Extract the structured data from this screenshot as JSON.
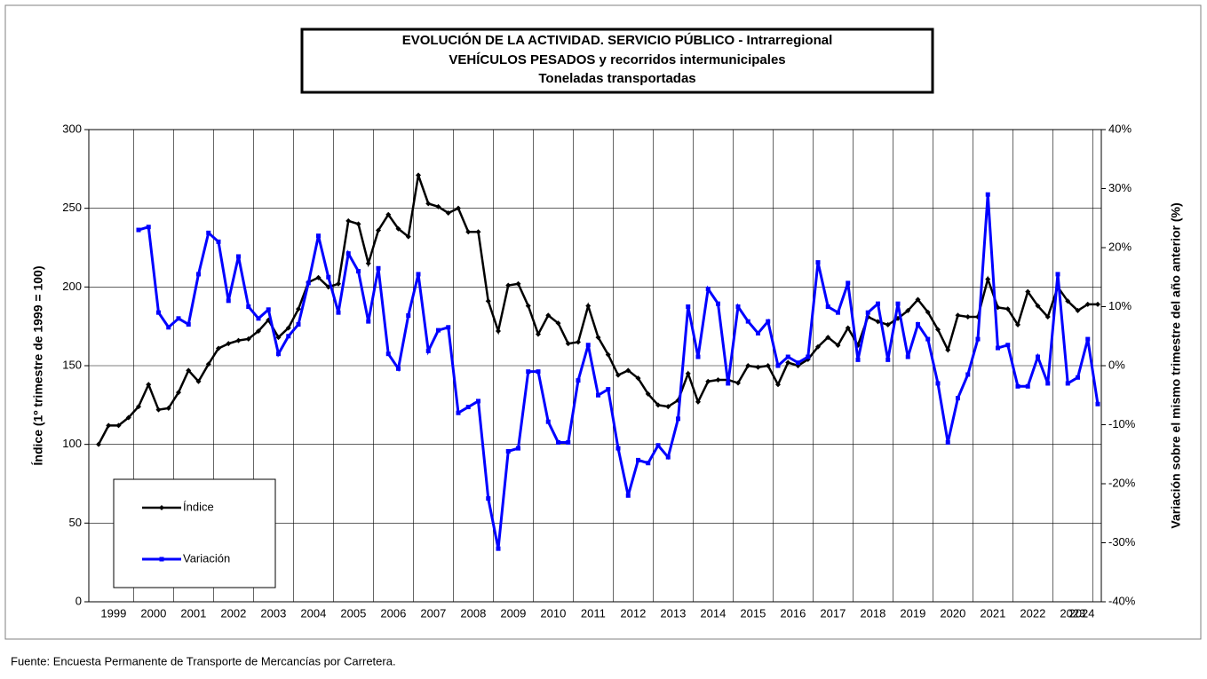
{
  "chart_data": {
    "type": "line",
    "title": [
      "EVOLUCIÓN  DE  LA  ACTIVIDAD.  SERVICIO  PÚBLICO - Intrarregional",
      "VEHÍCULOS  PESADOS  y  recorridos  intermunicipales",
      "Toneladas transportadas"
    ],
    "y_label": "Índice (1º trimestre de 1999 = 100)",
    "y2_label": "Variación sobre el mismo trimestre del año anterior (%)",
    "source": "Fuente: Encuesta Permanente de Transporte de Mercancías por Carretera.",
    "categories": [
      "1999",
      null,
      null,
      null,
      "2000",
      null,
      null,
      null,
      "2001",
      null,
      null,
      null,
      "2002",
      null,
      null,
      null,
      "2003",
      null,
      null,
      null,
      "2004",
      null,
      null,
      null,
      "2005",
      null,
      null,
      null,
      "2006",
      null,
      null,
      null,
      "2007",
      null,
      null,
      null,
      "2008",
      null,
      null,
      null,
      "2009",
      null,
      null,
      null,
      "2010",
      null,
      null,
      null,
      "2011",
      null,
      null,
      null,
      "2012",
      null,
      null,
      null,
      "2013",
      null,
      null,
      null,
      "2014",
      null,
      null,
      null,
      "2015",
      null,
      null,
      null,
      "2016",
      null,
      null,
      null,
      "2017",
      null,
      null,
      null,
      "2018",
      null,
      null,
      null,
      "2019",
      null,
      null,
      null,
      "2020",
      null,
      null,
      null,
      "2021",
      null,
      null,
      null,
      "2022",
      null,
      null,
      null,
      "2023",
      null,
      null,
      null,
      "2024"
    ],
    "series": [
      {
        "name": "Índice",
        "color": "#000000",
        "values": [
          100,
          112,
          112,
          117,
          124,
          138,
          122,
          123,
          133,
          147,
          140,
          151,
          161,
          164,
          166,
          167,
          172,
          179,
          168,
          174,
          186,
          203,
          206,
          200,
          202,
          242,
          240,
          215,
          236,
          246,
          237,
          232,
          271,
          253,
          251,
          247,
          250,
          235,
          235,
          191,
          172,
          201,
          202,
          188,
          170,
          182,
          177,
          164,
          165,
          188,
          168,
          157,
          144,
          147,
          142,
          132,
          125,
          124,
          128,
          145,
          127,
          140,
          141,
          141,
          139,
          150,
          149,
          150,
          138,
          152,
          150,
          154,
          162,
          168,
          163,
          174,
          163,
          181,
          178,
          176,
          180,
          185,
          192,
          184,
          173,
          160,
          182,
          181,
          181,
          205,
          187,
          186,
          176,
          197,
          188,
          181,
          200,
          191,
          185,
          189,
          189
        ]
      },
      {
        "name": "Variación",
        "color": "#0000ff",
        "axis": "y2",
        "values": [
          null,
          null,
          null,
          null,
          23,
          23.5,
          9,
          6.5,
          8,
          7,
          15.5,
          22.5,
          21,
          11,
          18.5,
          10,
          8,
          9.5,
          2,
          5,
          7,
          14,
          22,
          15,
          9,
          19,
          16,
          7.5,
          16.5,
          2,
          -0.5,
          8.5,
          15.5,
          2.5,
          6,
          6.5,
          -8,
          -7,
          -6,
          -22.5,
          -31,
          -14.5,
          -14,
          -1,
          -1,
          -9.5,
          -13,
          -13,
          -2.5,
          3.5,
          -5,
          -4,
          -14,
          -22,
          -16,
          -16.5,
          -13.5,
          -15.5,
          -9,
          10,
          1.5,
          13,
          10.5,
          -3,
          10,
          7.5,
          5.5,
          7.5,
          0,
          1.5,
          0.5,
          1.5,
          17.5,
          10,
          9,
          14,
          1,
          9,
          10.5,
          1,
          10.5,
          1.5,
          7,
          4.5,
          -3,
          -13,
          -5.5,
          -1.5,
          4.5,
          29,
          3,
          3.5,
          -3.5,
          -3.5,
          1.5,
          -3,
          15.5,
          -3,
          -2,
          4.5,
          -6.5
        ]
      }
    ],
    "ylim": [
      0,
      300
    ],
    "yticks": [
      0,
      50,
      100,
      150,
      200,
      250,
      300
    ],
    "y2lim": [
      -40,
      40
    ],
    "y2ticks": [
      {
        "value": -40,
        "label": "-40%"
      },
      {
        "value": -30,
        "label": "-30%"
      },
      {
        "value": -20,
        "label": "-20%"
      },
      {
        "value": -10,
        "label": "-10%"
      },
      {
        "value": 0,
        "label": "0%"
      },
      {
        "value": 10,
        "label": "10%"
      },
      {
        "value": 20,
        "label": "20%"
      },
      {
        "value": 30,
        "label": "30%"
      },
      {
        "value": 40,
        "label": "40%"
      }
    ],
    "grid": true,
    "legend": "lower left"
  }
}
